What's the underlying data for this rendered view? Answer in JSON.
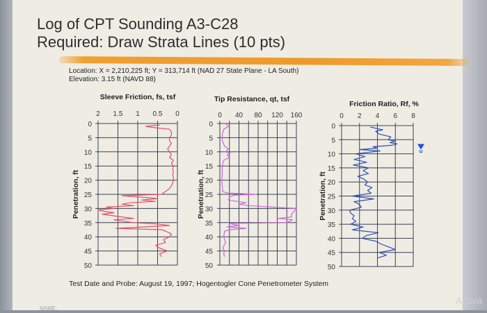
{
  "slide": {
    "title_line1": "Log of CPT Sounding A3-C28",
    "title_line2": "Required: Draw Strata Lines (10 pts)",
    "location": "Location: X = 2,210,225 ft; Y = 313,714 ft (NAD 27 State Plane - LA South)",
    "elevation": "Elevation: 3.15 ft (NAVD 88)",
    "footer": "Test Date and Probe: August 19, 1997; Hogentogler Cone Penetrometer System",
    "name_label": "NAME:",
    "watermark": "Activa",
    "accent_color": "#f0a030"
  },
  "chart_data": [
    {
      "type": "line",
      "title": "Sleeve Friction, fs, tsf",
      "xlabel": "Sleeve Friction, fs, tsf",
      "ylabel": "Penetration, ft",
      "x_ticks": [
        "2",
        "1.5",
        "1",
        "0.5",
        "0"
      ],
      "y_ticks": [
        "0",
        "5",
        "10",
        "15",
        "20",
        "25",
        "30",
        "35",
        "40",
        "45",
        "50"
      ],
      "xlim": [
        2,
        0
      ],
      "ylim": [
        0,
        50
      ],
      "x_reversed": true,
      "grid": true,
      "color": "#e0506a",
      "series": [
        {
          "name": "fs",
          "depth": [
            0.5,
            1,
            1.5,
            2,
            3,
            4,
            5,
            6,
            7,
            8,
            9,
            10,
            11,
            12,
            13,
            14,
            15,
            16,
            17,
            18,
            19,
            20,
            21,
            22,
            23,
            24,
            25,
            25.5,
            26,
            26.5,
            27,
            27.5,
            28,
            28.5,
            29,
            29.5,
            30,
            30.5,
            31,
            31.5,
            32,
            33,
            33.5,
            34,
            35,
            35.5,
            36,
            36.5,
            37,
            37.5,
            38,
            39,
            40,
            41,
            42,
            43,
            44,
            45,
            46,
            47
          ],
          "values": [
            0.45,
            0.8,
            0.55,
            0.2,
            0.15,
            0.15,
            0.2,
            0.2,
            0.15,
            0.2,
            0.25,
            0.2,
            0.15,
            0.2,
            0.1,
            0.15,
            0.1,
            0.12,
            0.1,
            0.12,
            0.1,
            0.1,
            0.12,
            0.15,
            0.2,
            0.3,
            0.4,
            1.4,
            0.9,
            0.5,
            0.9,
            0.55,
            1.2,
            1.4,
            1.1,
            1.8,
            1.6,
            2.0,
            1.85,
            1.6,
            1.9,
            1.4,
            1.1,
            1.6,
            1.1,
            0.5,
            0.2,
            0.8,
            1.55,
            0.4,
            0.3,
            0.15,
            0.2,
            0.35,
            0.3,
            0.55,
            0.45,
            0.25,
            0.45,
            0.4
          ]
        }
      ]
    },
    {
      "type": "line",
      "title": "Tip Resistance, qt, tsf",
      "xlabel": "Tip Resistance, qt, tsf",
      "ylabel": "Penetration, ft",
      "x_ticks": [
        "0",
        "40",
        "80",
        "120",
        "160"
      ],
      "y_ticks": [
        "0",
        "5",
        "10",
        "15",
        "20",
        "25",
        "30",
        "35",
        "40",
        "45",
        "50"
      ],
      "xlim": [
        0,
        160
      ],
      "ylim": [
        0,
        50
      ],
      "grid": true,
      "color": "#cc66d9",
      "series": [
        {
          "name": "qt",
          "depth": [
            0,
            1,
            2,
            4,
            6,
            8,
            9,
            10,
            10.5,
            11,
            12,
            13,
            15,
            18,
            20,
            22,
            24,
            24.5,
            25,
            25.3,
            26,
            27,
            28,
            28.5,
            29,
            29.5,
            30,
            31,
            32,
            33,
            33.5,
            34,
            35,
            35.3,
            36,
            36.5,
            37,
            37.5,
            38,
            40,
            42,
            44,
            45,
            46,
            47
          ],
          "values": [
            12,
            18,
            8,
            5,
            5,
            10,
            18,
            12,
            22,
            15,
            20,
            8,
            5,
            5,
            4,
            5,
            6,
            15,
            75,
            30,
            20,
            18,
            55,
            40,
            60,
            110,
            160,
            155,
            150,
            150,
            122,
            152,
            140,
            20,
            40,
            15,
            55,
            20,
            10,
            8,
            12,
            6,
            10,
            8,
            10
          ]
        }
      ]
    },
    {
      "type": "line",
      "title": "Friction Ratio, Rf, %",
      "xlabel": "Friction Ratio, Rf, %",
      "ylabel": "Penetration, ft",
      "x_ticks": [
        "0",
        "2",
        "4",
        "6",
        "8"
      ],
      "y_ticks": [
        "0",
        "5",
        "10",
        "15",
        "20",
        "25",
        "30",
        "35",
        "40",
        "45",
        "50"
      ],
      "xlim": [
        0,
        8
      ],
      "ylim": [
        0,
        50
      ],
      "grid": true,
      "color": "#2f4fb0",
      "water_table_depth": 8.5,
      "water_table_color": "#1c4fd8",
      "series": [
        {
          "name": "Rf",
          "depth": [
            0.5,
            1,
            1.5,
            2,
            3,
            4,
            5,
            5.5,
            6,
            6.5,
            7,
            7.5,
            8,
            8.5,
            9,
            10,
            11,
            12,
            13,
            14,
            15,
            16,
            17,
            18,
            19,
            20,
            21,
            22,
            23,
            24,
            25,
            26,
            27,
            28,
            29,
            30,
            31,
            32,
            33,
            34,
            35,
            36,
            37,
            38,
            39,
            40,
            41,
            42,
            43,
            44,
            45,
            46,
            47
          ],
          "values": [
            3.2,
            3.9,
            4.6,
            3.8,
            4.2,
            5.5,
            5.2,
            6.0,
            5.4,
            6.2,
            5.6,
            3.5,
            4.0,
            2.0,
            4.3,
            1.6,
            2.6,
            1.4,
            2.8,
            1.3,
            3.0,
            2.4,
            3.0,
            1.8,
            2.5,
            2.9,
            2.6,
            3.4,
            2.9,
            3.3,
            1.2,
            3.6,
            1.4,
            2.0,
            2.2,
            0.9,
            1.0,
            1.4,
            1.2,
            1.6,
            1.0,
            2.4,
            1.2,
            4.1,
            2.8,
            2.3,
            3.8,
            4.4,
            5.2,
            6.0,
            4.2,
            5.0,
            4.0
          ]
        }
      ]
    }
  ]
}
